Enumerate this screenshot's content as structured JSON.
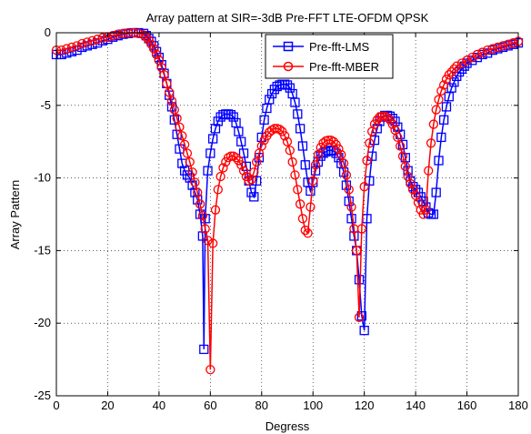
{
  "chart_data": {
    "type": "line",
    "title": "Array pattern at SIR=-3dB Pre-FFT LTE-OFDM QPSK",
    "xlabel": "Degress",
    "ylabel": "Array Pattern",
    "xlim": [
      0,
      180
    ],
    "ylim": [
      -25,
      0
    ],
    "xticks": [
      0,
      20,
      40,
      60,
      80,
      100,
      120,
      140,
      160,
      180
    ],
    "yticks": [
      0,
      -5,
      -10,
      -15,
      -20,
      -25
    ],
    "grid": true,
    "legend_position": "top-center",
    "series": [
      {
        "name": "Pre-fft-LMS",
        "color": "#0000ff",
        "marker": "square",
        "points": [
          [
            0,
            -1.5
          ],
          [
            2,
            -1.5
          ],
          [
            4,
            -1.4
          ],
          [
            6,
            -1.3
          ],
          [
            8,
            -1.2
          ],
          [
            10,
            -1.0
          ],
          [
            12,
            -0.9
          ],
          [
            14,
            -0.8
          ],
          [
            16,
            -0.7
          ],
          [
            18,
            -0.55
          ],
          [
            20,
            -0.45
          ],
          [
            22,
            -0.3
          ],
          [
            24,
            -0.2
          ],
          [
            26,
            -0.1
          ],
          [
            28,
            -0.05
          ],
          [
            30,
            0
          ],
          [
            32,
            0
          ],
          [
            34,
            -0.05
          ],
          [
            35,
            -0.2
          ],
          [
            36,
            -0.4
          ],
          [
            37,
            -0.6
          ],
          [
            38,
            -0.9
          ],
          [
            39,
            -1.3
          ],
          [
            40,
            -1.7
          ],
          [
            41,
            -2.2
          ],
          [
            42,
            -2.8
          ],
          [
            43,
            -3.5
          ],
          [
            44,
            -4.3
          ],
          [
            45,
            -5.1
          ],
          [
            46,
            -6.0
          ],
          [
            47,
            -7.0
          ],
          [
            48,
            -8.0
          ],
          [
            49,
            -9.0
          ],
          [
            50,
            -9.5
          ],
          [
            51,
            -9.8
          ],
          [
            52,
            -10.0
          ],
          [
            53,
            -10.5
          ],
          [
            54,
            -11.0
          ],
          [
            55,
            -11.5
          ],
          [
            56,
            -12.5
          ],
          [
            57,
            -14.0
          ],
          [
            57.5,
            -21.8
          ],
          [
            58,
            -12.8
          ],
          [
            59,
            -9.5
          ],
          [
            60,
            -8.3
          ],
          [
            61,
            -7.3
          ],
          [
            62,
            -6.6
          ],
          [
            63,
            -6.1
          ],
          [
            64,
            -5.8
          ],
          [
            65,
            -5.65
          ],
          [
            66,
            -5.6
          ],
          [
            67,
            -5.6
          ],
          [
            68,
            -5.65
          ],
          [
            69,
            -5.8
          ],
          [
            70,
            -6.2
          ],
          [
            71,
            -6.8
          ],
          [
            72,
            -7.5
          ],
          [
            73,
            -8.3
          ],
          [
            74,
            -9.2
          ],
          [
            75,
            -10.2
          ],
          [
            76,
            -11.0
          ],
          [
            77,
            -11.3
          ],
          [
            78,
            -10.2
          ],
          [
            79,
            -8.6
          ],
          [
            80,
            -7.2
          ],
          [
            81,
            -6.0
          ],
          [
            82,
            -5.2
          ],
          [
            83,
            -4.6
          ],
          [
            84,
            -4.2
          ],
          [
            85,
            -3.9
          ],
          [
            86,
            -3.7
          ],
          [
            87,
            -3.6
          ],
          [
            88,
            -3.55
          ],
          [
            89,
            -3.55
          ],
          [
            90,
            -3.6
          ],
          [
            91,
            -3.8
          ],
          [
            92,
            -4.2
          ],
          [
            93,
            -4.8
          ],
          [
            94,
            -5.6
          ],
          [
            95,
            -6.6
          ],
          [
            96,
            -7.8
          ],
          [
            97,
            -9.1
          ],
          [
            98,
            -10.3
          ],
          [
            99,
            -10.9
          ],
          [
            100,
            -10.3
          ],
          [
            101,
            -9.5
          ],
          [
            102,
            -8.9
          ],
          [
            103,
            -8.5
          ],
          [
            104,
            -8.3
          ],
          [
            105,
            -8.2
          ],
          [
            106,
            -8.1
          ],
          [
            107,
            -8.1
          ],
          [
            108,
            -8.15
          ],
          [
            109,
            -8.3
          ],
          [
            110,
            -8.6
          ],
          [
            111,
            -9.0
          ],
          [
            112,
            -9.6
          ],
          [
            113,
            -10.5
          ],
          [
            114,
            -11.6
          ],
          [
            115,
            -12.8
          ],
          [
            116,
            -14.0
          ],
          [
            117,
            -15.0
          ],
          [
            118,
            -17.0
          ],
          [
            119,
            -19.5
          ],
          [
            120,
            -20.5
          ],
          [
            121,
            -12.8
          ],
          [
            122,
            -10.2
          ],
          [
            123,
            -8.5
          ],
          [
            124,
            -7.4
          ],
          [
            125,
            -6.6
          ],
          [
            126,
            -6.1
          ],
          [
            127,
            -5.8
          ],
          [
            128,
            -5.7
          ],
          [
            129,
            -5.7
          ],
          [
            130,
            -5.75
          ],
          [
            131,
            -5.9
          ],
          [
            132,
            -6.1
          ],
          [
            133,
            -6.5
          ],
          [
            134,
            -7.0
          ],
          [
            135,
            -7.7
          ],
          [
            136,
            -8.6
          ],
          [
            137,
            -9.5
          ],
          [
            138,
            -10.2
          ],
          [
            139,
            -10.6
          ],
          [
            140,
            -10.8
          ],
          [
            141,
            -11.0
          ],
          [
            142,
            -11.3
          ],
          [
            143,
            -11.6
          ],
          [
            144,
            -12.0
          ],
          [
            145,
            -12.4
          ],
          [
            146,
            -12.5
          ],
          [
            147,
            -12.5
          ],
          [
            148,
            -11.0
          ],
          [
            149,
            -8.8
          ],
          [
            150,
            -7.2
          ],
          [
            151,
            -6.0
          ],
          [
            152,
            -5.1
          ],
          [
            153,
            -4.4
          ],
          [
            154,
            -3.8
          ],
          [
            155,
            -3.4
          ],
          [
            156,
            -3.0
          ],
          [
            157,
            -2.7
          ],
          [
            158,
            -2.5
          ],
          [
            159,
            -2.3
          ],
          [
            160,
            -2.1
          ],
          [
            162,
            -1.9
          ],
          [
            164,
            -1.7
          ],
          [
            166,
            -1.5
          ],
          [
            168,
            -1.4
          ],
          [
            170,
            -1.2
          ],
          [
            172,
            -1.1
          ],
          [
            174,
            -1.0
          ],
          [
            176,
            -0.9
          ],
          [
            178,
            -0.8
          ],
          [
            180,
            -0.7
          ]
        ]
      },
      {
        "name": "Pre-fft-MBER",
        "color": "#ff0000",
        "marker": "circle",
        "points": [
          [
            0,
            -1.2
          ],
          [
            2,
            -1.2
          ],
          [
            4,
            -1.1
          ],
          [
            6,
            -1.0
          ],
          [
            8,
            -0.9
          ],
          [
            10,
            -0.75
          ],
          [
            12,
            -0.65
          ],
          [
            14,
            -0.55
          ],
          [
            16,
            -0.45
          ],
          [
            18,
            -0.35
          ],
          [
            20,
            -0.3
          ],
          [
            22,
            -0.2
          ],
          [
            24,
            -0.1
          ],
          [
            26,
            -0.05
          ],
          [
            28,
            0
          ],
          [
            30,
            0
          ],
          [
            32,
            -0.05
          ],
          [
            34,
            -0.15
          ],
          [
            35,
            -0.3
          ],
          [
            36,
            -0.5
          ],
          [
            37,
            -0.8
          ],
          [
            38,
            -1.1
          ],
          [
            39,
            -1.5
          ],
          [
            40,
            -1.9
          ],
          [
            41,
            -2.4
          ],
          [
            42,
            -2.9
          ],
          [
            43,
            -3.5
          ],
          [
            44,
            -4.1
          ],
          [
            45,
            -4.7
          ],
          [
            46,
            -5.3
          ],
          [
            47,
            -5.9
          ],
          [
            48,
            -6.5
          ],
          [
            49,
            -7.1
          ],
          [
            50,
            -7.7
          ],
          [
            51,
            -8.3
          ],
          [
            52,
            -8.9
          ],
          [
            53,
            -9.6
          ],
          [
            54,
            -10.3
          ],
          [
            55,
            -11.0
          ],
          [
            56,
            -11.8
          ],
          [
            57,
            -12.6
          ],
          [
            58,
            -13.5
          ],
          [
            59,
            -14.3
          ],
          [
            60,
            -23.2
          ],
          [
            61,
            -14.5
          ],
          [
            62,
            -12.2
          ],
          [
            63,
            -10.8
          ],
          [
            64,
            -9.9
          ],
          [
            65,
            -9.3
          ],
          [
            66,
            -8.9
          ],
          [
            67,
            -8.6
          ],
          [
            68,
            -8.5
          ],
          [
            69,
            -8.5
          ],
          [
            70,
            -8.6
          ],
          [
            71,
            -8.8
          ],
          [
            72,
            -9.1
          ],
          [
            73,
            -9.5
          ],
          [
            74,
            -9.9
          ],
          [
            75,
            -10.2
          ],
          [
            76,
            -10.1
          ],
          [
            77,
            -9.6
          ],
          [
            78,
            -8.9
          ],
          [
            79,
            -8.3
          ],
          [
            80,
            -7.8
          ],
          [
            81,
            -7.4
          ],
          [
            82,
            -7.1
          ],
          [
            83,
            -6.85
          ],
          [
            84,
            -6.7
          ],
          [
            85,
            -6.6
          ],
          [
            86,
            -6.6
          ],
          [
            87,
            -6.65
          ],
          [
            88,
            -6.8
          ],
          [
            89,
            -7.1
          ],
          [
            90,
            -7.5
          ],
          [
            91,
            -8.1
          ],
          [
            92,
            -8.9
          ],
          [
            93,
            -9.8
          ],
          [
            94,
            -10.8
          ],
          [
            95,
            -11.8
          ],
          [
            96,
            -12.8
          ],
          [
            97,
            -13.6
          ],
          [
            98,
            -13.8
          ],
          [
            99,
            -12.0
          ],
          [
            100,
            -10.2
          ],
          [
            101,
            -9.1
          ],
          [
            102,
            -8.4
          ],
          [
            103,
            -7.9
          ],
          [
            104,
            -7.6
          ],
          [
            105,
            -7.45
          ],
          [
            106,
            -7.4
          ],
          [
            107,
            -7.4
          ],
          [
            108,
            -7.5
          ],
          [
            109,
            -7.7
          ],
          [
            110,
            -8.0
          ],
          [
            111,
            -8.4
          ],
          [
            112,
            -9.0
          ],
          [
            113,
            -9.8
          ],
          [
            114,
            -10.8
          ],
          [
            115,
            -12.0
          ],
          [
            116,
            -13.5
          ],
          [
            117,
            -15.0
          ],
          [
            118,
            -19.6
          ],
          [
            119,
            -13.5
          ],
          [
            120,
            -10.6
          ],
          [
            121,
            -8.8
          ],
          [
            122,
            -7.6
          ],
          [
            123,
            -6.8
          ],
          [
            124,
            -6.3
          ],
          [
            125,
            -6.0
          ],
          [
            126,
            -5.8
          ],
          [
            127,
            -5.75
          ],
          [
            128,
            -5.75
          ],
          [
            129,
            -5.85
          ],
          [
            130,
            -6.0
          ],
          [
            131,
            -6.3
          ],
          [
            132,
            -6.7
          ],
          [
            133,
            -7.2
          ],
          [
            134,
            -7.8
          ],
          [
            135,
            -8.5
          ],
          [
            136,
            -9.2
          ],
          [
            137,
            -9.9
          ],
          [
            138,
            -10.4
          ],
          [
            139,
            -10.8
          ],
          [
            140,
            -11.2
          ],
          [
            141,
            -11.7
          ],
          [
            142,
            -12.2
          ],
          [
            143,
            -12.5
          ],
          [
            144,
            -12.2
          ],
          [
            145,
            -9.5
          ],
          [
            146,
            -7.6
          ],
          [
            147,
            -6.3
          ],
          [
            148,
            -5.3
          ],
          [
            149,
            -4.6
          ],
          [
            150,
            -4.0
          ],
          [
            151,
            -3.6
          ],
          [
            152,
            -3.2
          ],
          [
            153,
            -2.9
          ],
          [
            154,
            -2.7
          ],
          [
            155,
            -2.5
          ],
          [
            156,
            -2.3
          ],
          [
            158,
            -2.1
          ],
          [
            160,
            -1.9
          ],
          [
            162,
            -1.7
          ],
          [
            164,
            -1.5
          ],
          [
            166,
            -1.35
          ],
          [
            168,
            -1.2
          ],
          [
            170,
            -1.1
          ],
          [
            172,
            -1.0
          ],
          [
            174,
            -0.9
          ],
          [
            176,
            -0.8
          ],
          [
            178,
            -0.7
          ],
          [
            180,
            -0.6
          ]
        ]
      }
    ]
  }
}
